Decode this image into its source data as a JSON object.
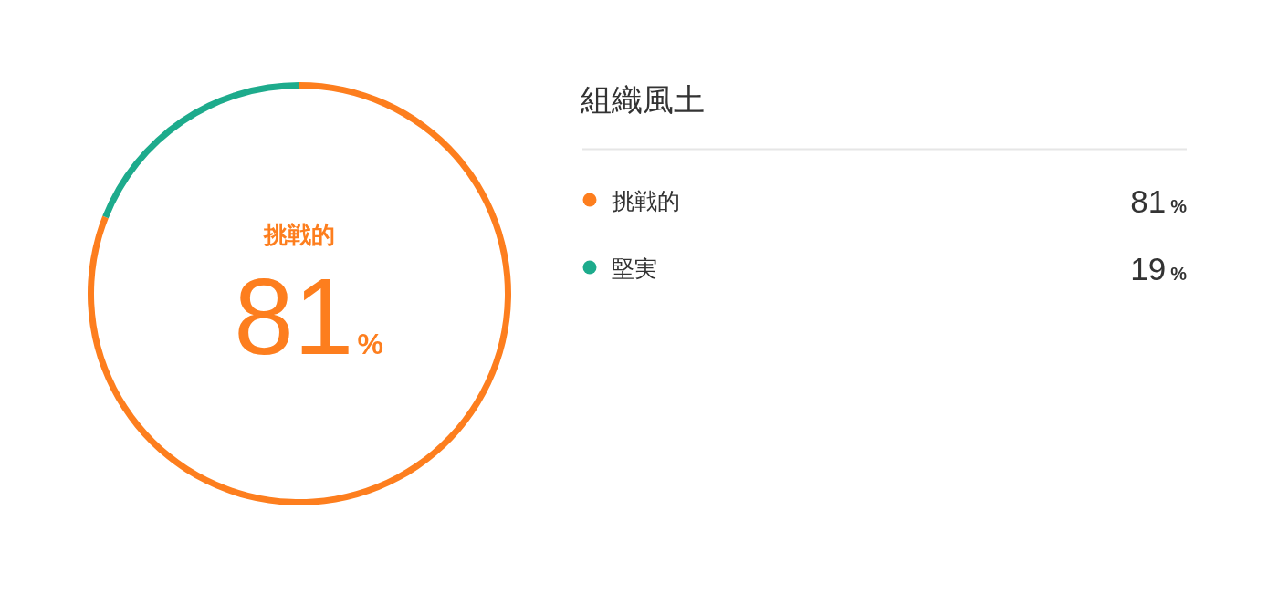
{
  "chart_data": {
    "type": "donut",
    "title": "組織風土",
    "categories": [
      "挑戦的",
      "堅実"
    ],
    "values": [
      81,
      19
    ],
    "colors": [
      "#fd7e1e",
      "#1dab8c"
    ],
    "value_labels": [
      "81%",
      "19%"
    ],
    "legend": "right",
    "annotations": [
      "挑戦的",
      "81%"
    ]
  }
}
